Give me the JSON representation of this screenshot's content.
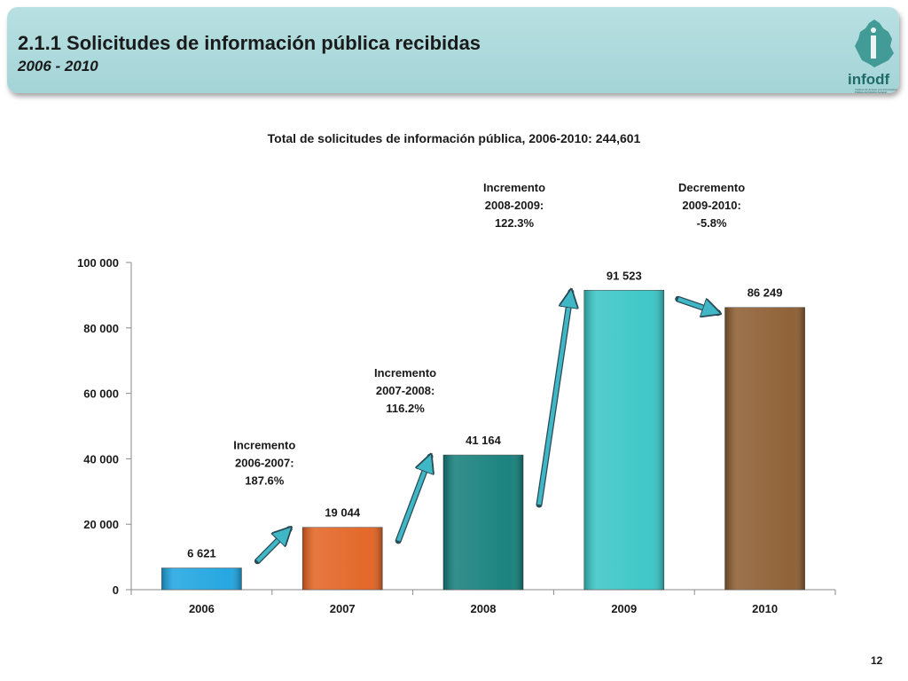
{
  "header": {
    "title": "2.1.1 Solicitudes de información pública recibidas",
    "subtitle": "2006 - 2010",
    "logo_text": "infodf",
    "logo_caption": "Instituto de Acceso a la Información Pública del Distrito Federal"
  },
  "page_number": "12",
  "colors": {
    "header_bg": "#a8d6d9",
    "bar_2006": "#1aa3e0",
    "bar_2007": "#e2601e",
    "bar_2008": "#0f7c78",
    "bar_2009": "#35c4c4",
    "bar_2010": "#8a5a2d",
    "arrow": "#3fb7c6"
  },
  "chart_data": {
    "type": "bar",
    "title": "Total de solicitudes de información pública, 2006-2010: 244,601",
    "categories": [
      "2006",
      "2007",
      "2008",
      "2009",
      "2010"
    ],
    "values": [
      6621,
      19044,
      41164,
      91523,
      86249
    ],
    "value_labels": [
      "6 621",
      "19 044",
      "41 164",
      "91 523",
      "86 249"
    ],
    "bar_colors": [
      "#1aa3e0",
      "#e2601e",
      "#0f7c78",
      "#35c4c4",
      "#8a5a2d"
    ],
    "ylim": [
      0,
      100000
    ],
    "yticks": [
      0,
      20000,
      40000,
      60000,
      80000,
      100000
    ],
    "ytick_labels": [
      "0",
      "20 000",
      "40 000",
      "60 000",
      "80 000",
      "100 000"
    ],
    "xlabel": "",
    "ylabel": "",
    "grid": false,
    "legend": "none",
    "annotations": [
      {
        "from": "2006",
        "to": "2007",
        "lines": [
          "Incremento",
          "2006-2007:",
          "187.6%"
        ]
      },
      {
        "from": "2007",
        "to": "2008",
        "lines": [
          "Incremento",
          "2007-2008:",
          "116.2%"
        ]
      },
      {
        "from": "2008",
        "to": "2009",
        "lines": [
          "Incremento",
          "2008-2009:",
          "122.3%"
        ]
      },
      {
        "from": "2009",
        "to": "2010",
        "lines": [
          "Decremento",
          "2009-2010:",
          "-5.8%"
        ]
      }
    ]
  }
}
